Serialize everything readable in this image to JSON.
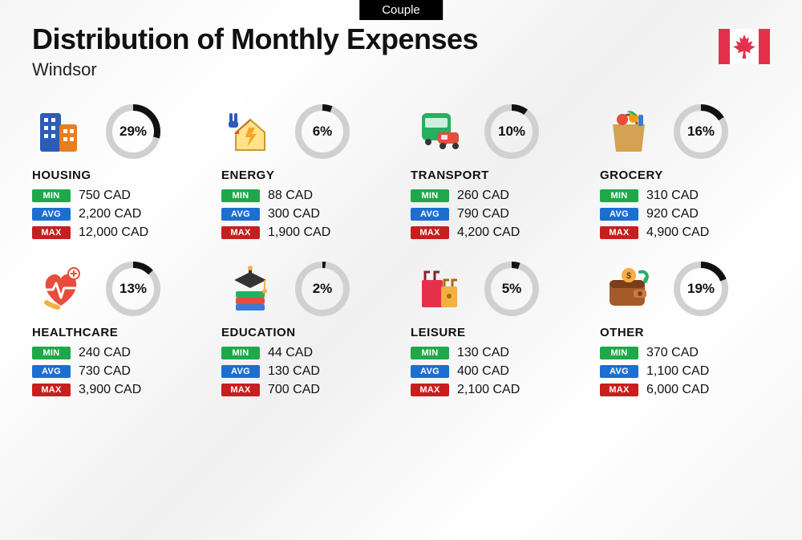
{
  "badge": "Couple",
  "title": "Distribution of Monthly Expenses",
  "subtitle": "Windsor",
  "flag_color": "#e5304c",
  "ring": {
    "track_color": "#d0d0d0",
    "progress_color": "#111111",
    "stroke_width": 8,
    "radius": 30
  },
  "stat_labels": {
    "min": "MIN",
    "avg": "AVG",
    "max": "MAX"
  },
  "stat_colors": {
    "min": "#1fa84a",
    "avg": "#1b6fd0",
    "max": "#c81e1e"
  },
  "currency_suffix": " CAD",
  "categories": [
    {
      "name": "HOUSING",
      "percent": 29,
      "min": "750",
      "avg": "2,200",
      "max": "12,000",
      "icon": "buildings"
    },
    {
      "name": "ENERGY",
      "percent": 6,
      "min": "88",
      "avg": "300",
      "max": "1,900",
      "icon": "energy"
    },
    {
      "name": "TRANSPORT",
      "percent": 10,
      "min": "260",
      "avg": "790",
      "max": "4,200",
      "icon": "transport"
    },
    {
      "name": "GROCERY",
      "percent": 16,
      "min": "310",
      "avg": "920",
      "max": "4,900",
      "icon": "grocery"
    },
    {
      "name": "HEALTHCARE",
      "percent": 13,
      "min": "240",
      "avg": "730",
      "max": "3,900",
      "icon": "healthcare"
    },
    {
      "name": "EDUCATION",
      "percent": 2,
      "min": "44",
      "avg": "130",
      "max": "700",
      "icon": "education"
    },
    {
      "name": "LEISURE",
      "percent": 5,
      "min": "130",
      "avg": "400",
      "max": "2,100",
      "icon": "leisure"
    },
    {
      "name": "OTHER",
      "percent": 19,
      "min": "370",
      "avg": "1,100",
      "max": "6,000",
      "icon": "wallet"
    }
  ]
}
